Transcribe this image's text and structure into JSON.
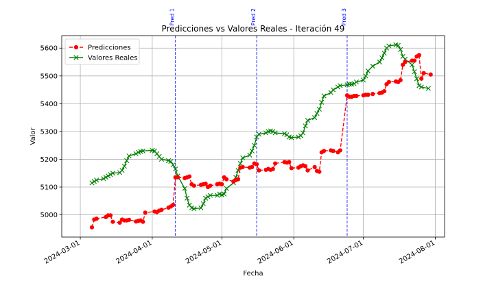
{
  "chart_data": {
    "type": "line",
    "title": "Predicciones vs Valores Reales - Iteración 49",
    "xlabel": "Fecha",
    "ylabel": "Valor",
    "xlim": [
      "2024-02-22",
      "2024-08-05"
    ],
    "ylim": [
      4920,
      5645
    ],
    "x_ticks": [
      "2024-03-01",
      "2024-04-01",
      "2024-05-01",
      "2024-06-01",
      "2024-07-01",
      "2024-08-01"
    ],
    "y_ticks": [
      5000,
      5100,
      5200,
      5300,
      5400,
      5500,
      5600
    ],
    "grid": true,
    "legend_position": "top-left",
    "series": [
      {
        "name": "Predicciones",
        "color": "#ff0000",
        "style": "dashed",
        "marker": "circle",
        "points": [
          [
            "2024-03-06",
            4955
          ],
          [
            "2024-03-07",
            4983
          ],
          [
            "2024-03-08",
            4986
          ],
          [
            "2024-03-12",
            4992
          ],
          [
            "2024-03-13",
            4998
          ],
          [
            "2024-03-14",
            4998
          ],
          [
            "2024-03-15",
            4975
          ],
          [
            "2024-03-18",
            4972
          ],
          [
            "2024-03-19",
            4983
          ],
          [
            "2024-03-20",
            4980
          ],
          [
            "2024-03-21",
            4980
          ],
          [
            "2024-03-22",
            4982
          ],
          [
            "2024-03-25",
            4976
          ],
          [
            "2024-03-26",
            4978
          ],
          [
            "2024-03-27",
            4980
          ],
          [
            "2024-03-28",
            4975
          ],
          [
            "2024-03-29",
            5008
          ],
          [
            "2024-04-02",
            5012
          ],
          [
            "2024-04-03",
            5010
          ],
          [
            "2024-04-04",
            5015
          ],
          [
            "2024-04-05",
            5018
          ],
          [
            "2024-04-08",
            5026
          ],
          [
            "2024-04-09",
            5030
          ],
          [
            "2024-04-10",
            5036
          ],
          [
            "2024-04-11",
            5135
          ],
          [
            "2024-04-12",
            5135
          ],
          [
            "2024-04-15",
            5132
          ],
          [
            "2024-04-16",
            5135
          ],
          [
            "2024-04-17",
            5138
          ],
          [
            "2024-04-18",
            5110
          ],
          [
            "2024-04-19",
            5105
          ],
          [
            "2024-04-22",
            5108
          ],
          [
            "2024-04-23",
            5110
          ],
          [
            "2024-04-24",
            5112
          ],
          [
            "2024-04-25",
            5100
          ],
          [
            "2024-04-26",
            5105
          ],
          [
            "2024-04-29",
            5110
          ],
          [
            "2024-04-30",
            5112
          ],
          [
            "2024-05-01",
            5110
          ],
          [
            "2024-05-02",
            5135
          ],
          [
            "2024-05-03",
            5128
          ],
          [
            "2024-05-06",
            5120
          ],
          [
            "2024-05-07",
            5125
          ],
          [
            "2024-05-08",
            5128
          ],
          [
            "2024-05-09",
            5170
          ],
          [
            "2024-05-10",
            5172
          ],
          [
            "2024-05-13",
            5170
          ],
          [
            "2024-05-14",
            5172
          ],
          [
            "2024-05-15",
            5185
          ],
          [
            "2024-05-16",
            5182
          ],
          [
            "2024-05-17",
            5160
          ],
          [
            "2024-05-20",
            5162
          ],
          [
            "2024-05-21",
            5165
          ],
          [
            "2024-05-22",
            5162
          ],
          [
            "2024-05-23",
            5165
          ],
          [
            "2024-05-24",
            5185
          ],
          [
            "2024-05-28",
            5190
          ],
          [
            "2024-05-29",
            5188
          ],
          [
            "2024-05-30",
            5190
          ],
          [
            "2024-05-31",
            5168
          ],
          [
            "2024-06-03",
            5170
          ],
          [
            "2024-06-04",
            5175
          ],
          [
            "2024-06-05",
            5178
          ],
          [
            "2024-06-06",
            5175
          ],
          [
            "2024-06-07",
            5160
          ],
          [
            "2024-06-10",
            5172
          ],
          [
            "2024-06-11",
            5158
          ],
          [
            "2024-06-12",
            5155
          ],
          [
            "2024-06-13",
            5225
          ],
          [
            "2024-06-14",
            5230
          ],
          [
            "2024-06-17",
            5232
          ],
          [
            "2024-06-18",
            5230
          ],
          [
            "2024-06-20",
            5225
          ],
          [
            "2024-06-21",
            5232
          ],
          [
            "2024-06-24",
            5430
          ],
          [
            "2024-06-25",
            5425
          ],
          [
            "2024-06-26",
            5425
          ],
          [
            "2024-06-27",
            5428
          ],
          [
            "2024-06-28",
            5428
          ],
          [
            "2024-07-01",
            5430
          ],
          [
            "2024-07-02",
            5432
          ],
          [
            "2024-07-03",
            5432
          ],
          [
            "2024-07-05",
            5435
          ],
          [
            "2024-07-08",
            5438
          ],
          [
            "2024-07-09",
            5440
          ],
          [
            "2024-07-10",
            5445
          ],
          [
            "2024-07-11",
            5470
          ],
          [
            "2024-07-12",
            5478
          ],
          [
            "2024-07-15",
            5480
          ],
          [
            "2024-07-16",
            5478
          ],
          [
            "2024-07-17",
            5485
          ],
          [
            "2024-07-18",
            5540
          ],
          [
            "2024-07-19",
            5550
          ],
          [
            "2024-07-22",
            5555
          ],
          [
            "2024-07-23",
            5555
          ],
          [
            "2024-07-24",
            5570
          ],
          [
            "2024-07-25",
            5575
          ],
          [
            "2024-07-26",
            5490
          ],
          [
            "2024-07-27",
            5510
          ],
          [
            "2024-07-30",
            5505
          ]
        ]
      },
      {
        "name": "Valores Reales",
        "color": "#008000",
        "style": "solid",
        "marker": "x",
        "points": [
          [
            "2024-03-06",
            5115
          ],
          [
            "2024-03-07",
            5120
          ],
          [
            "2024-03-08",
            5125
          ],
          [
            "2024-03-11",
            5130
          ],
          [
            "2024-03-12",
            5135
          ],
          [
            "2024-03-13",
            5140
          ],
          [
            "2024-03-14",
            5145
          ],
          [
            "2024-03-15",
            5150
          ],
          [
            "2024-03-18",
            5152
          ],
          [
            "2024-03-19",
            5160
          ],
          [
            "2024-03-20",
            5175
          ],
          [
            "2024-03-21",
            5195
          ],
          [
            "2024-03-22",
            5212
          ],
          [
            "2024-03-25",
            5220
          ],
          [
            "2024-03-26",
            5225
          ],
          [
            "2024-03-27",
            5228
          ],
          [
            "2024-03-28",
            5230
          ],
          [
            "2024-04-01",
            5232
          ],
          [
            "2024-04-02",
            5230
          ],
          [
            "2024-04-03",
            5220
          ],
          [
            "2024-04-04",
            5210
          ],
          [
            "2024-04-05",
            5200
          ],
          [
            "2024-04-08",
            5195
          ],
          [
            "2024-04-09",
            5192
          ],
          [
            "2024-04-10",
            5180
          ],
          [
            "2024-04-11",
            5165
          ],
          [
            "2024-04-12",
            5140
          ],
          [
            "2024-04-15",
            5095
          ],
          [
            "2024-04-16",
            5060
          ],
          [
            "2024-04-17",
            5035
          ],
          [
            "2024-04-18",
            5025
          ],
          [
            "2024-04-19",
            5022
          ],
          [
            "2024-04-22",
            5025
          ],
          [
            "2024-04-23",
            5040
          ],
          [
            "2024-04-24",
            5060
          ],
          [
            "2024-04-25",
            5065
          ],
          [
            "2024-04-26",
            5070
          ],
          [
            "2024-04-29",
            5070
          ],
          [
            "2024-04-30",
            5075
          ],
          [
            "2024-05-01",
            5072
          ],
          [
            "2024-05-02",
            5075
          ],
          [
            "2024-05-03",
            5095
          ],
          [
            "2024-05-06",
            5115
          ],
          [
            "2024-05-07",
            5135
          ],
          [
            "2024-05-08",
            5160
          ],
          [
            "2024-05-09",
            5185
          ],
          [
            "2024-05-10",
            5205
          ],
          [
            "2024-05-13",
            5215
          ],
          [
            "2024-05-14",
            5230
          ],
          [
            "2024-05-15",
            5250
          ],
          [
            "2024-05-16",
            5280
          ],
          [
            "2024-05-17",
            5290
          ],
          [
            "2024-05-20",
            5295
          ],
          [
            "2024-05-21",
            5300
          ],
          [
            "2024-05-22",
            5302
          ],
          [
            "2024-05-23",
            5300
          ],
          [
            "2024-05-24",
            5295
          ],
          [
            "2024-05-28",
            5292
          ],
          [
            "2024-05-29",
            5288
          ],
          [
            "2024-05-30",
            5280
          ],
          [
            "2024-05-31",
            5278
          ],
          [
            "2024-06-03",
            5280
          ],
          [
            "2024-06-04",
            5285
          ],
          [
            "2024-06-05",
            5295
          ],
          [
            "2024-06-06",
            5320
          ],
          [
            "2024-06-07",
            5340
          ],
          [
            "2024-06-10",
            5350
          ],
          [
            "2024-06-11",
            5365
          ],
          [
            "2024-06-12",
            5380
          ],
          [
            "2024-06-13",
            5405
          ],
          [
            "2024-06-14",
            5428
          ],
          [
            "2024-06-17",
            5440
          ],
          [
            "2024-06-18",
            5450
          ],
          [
            "2024-06-20",
            5460
          ],
          [
            "2024-06-21",
            5465
          ],
          [
            "2024-06-24",
            5468
          ],
          [
            "2024-06-25",
            5470
          ],
          [
            "2024-06-26",
            5470
          ],
          [
            "2024-06-27",
            5472
          ],
          [
            "2024-06-28",
            5478
          ],
          [
            "2024-07-01",
            5485
          ],
          [
            "2024-07-02",
            5500
          ],
          [
            "2024-07-03",
            5518
          ],
          [
            "2024-07-05",
            5535
          ],
          [
            "2024-07-08",
            5550
          ],
          [
            "2024-07-09",
            5565
          ],
          [
            "2024-07-10",
            5582
          ],
          [
            "2024-07-11",
            5600
          ],
          [
            "2024-07-12",
            5608
          ],
          [
            "2024-07-15",
            5612
          ],
          [
            "2024-07-16",
            5610
          ],
          [
            "2024-07-17",
            5595
          ],
          [
            "2024-07-18",
            5570
          ],
          [
            "2024-07-19",
            5560
          ],
          [
            "2024-07-22",
            5540
          ],
          [
            "2024-07-23",
            5515
          ],
          [
            "2024-07-24",
            5490
          ],
          [
            "2024-07-25",
            5465
          ],
          [
            "2024-07-26",
            5460
          ],
          [
            "2024-07-29",
            5455
          ]
        ]
      }
    ],
    "vertical_markers": [
      {
        "date": "2024-04-11",
        "label": "Pred 1",
        "color": "#0000ff"
      },
      {
        "date": "2024-05-16",
        "label": "Pred 2",
        "color": "#0000ff"
      },
      {
        "date": "2024-06-24",
        "label": "Pred 3",
        "color": "#0000ff"
      }
    ]
  }
}
